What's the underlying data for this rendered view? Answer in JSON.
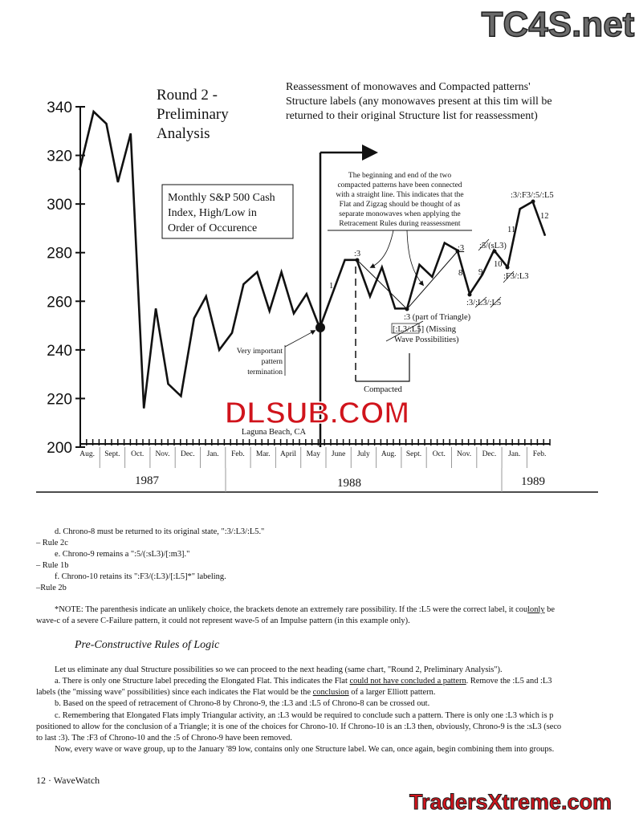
{
  "watermarks": {
    "top": "TC4S.net",
    "middle": "DLSUB.COM",
    "bottom": "TradersXtreme.com",
    "red": "#d0141c",
    "gray": "#6b6b6b"
  },
  "chart_data": {
    "type": "line",
    "title": "Round 2 - Preliminary Analysis",
    "title_lines": [
      "Round 2 -",
      "Preliminary",
      "Analysis"
    ],
    "subtitle_lines": [
      "Reassessment of monowaves and Compacted patterns'",
      "Structure labels (any monowaves present at this tim will be",
      "returned to their original Structure list for reassessment)"
    ],
    "legend_box_lines": [
      "Monthly S&P 500 Cash",
      "Index, High/Low in",
      "Order of Occurence"
    ],
    "ylim": [
      200,
      340
    ],
    "yticks": [
      "340",
      "320",
      "300",
      "280",
      "260",
      "240",
      "220",
      "200"
    ],
    "months": [
      "Aug.",
      "Sept.",
      "Oct.",
      "Nov.",
      "Dec.",
      "Jan.",
      "Feb.",
      "Mar.",
      "April",
      "May",
      "June",
      "July",
      "Aug.",
      "Sept.",
      "Oct.",
      "Nov.",
      "Dec.",
      "Jan.",
      "Feb."
    ],
    "years": [
      "1987",
      "1988",
      "1989"
    ],
    "grid": false,
    "points": [
      [
        "1987-08-07",
        314
      ],
      [
        "1987-08-24",
        338
      ],
      [
        "1987-09-09",
        333
      ],
      [
        "1987-09-23",
        309
      ],
      [
        "1987-10-08",
        329
      ],
      [
        "1987-10-24",
        216
      ],
      [
        "1987-11-08",
        257
      ],
      [
        "1987-11-23",
        226
      ],
      [
        "1987-12-08",
        221
      ],
      [
        "1987-12-24",
        253
      ],
      [
        "1988-01-08",
        262
      ],
      [
        "1988-01-24",
        240
      ],
      [
        "1988-02-09",
        247
      ],
      [
        "1988-02-23",
        267
      ],
      [
        "1988-03-09",
        272
      ],
      [
        "1988-03-24",
        256
      ],
      [
        "1988-04-08",
        272
      ],
      [
        "1988-04-23",
        255
      ],
      [
        "1988-05-08",
        263
      ],
      [
        "1988-05-24",
        249
      ],
      [
        "1988-06-24",
        277
      ],
      [
        "1988-07-08",
        277
      ],
      [
        "1988-07-24",
        262
      ],
      [
        "1988-08-08",
        274
      ],
      [
        "1988-08-24",
        257
      ],
      [
        "1988-09-08",
        257
      ],
      [
        "1988-09-23",
        275
      ],
      [
        "1988-10-08",
        270
      ],
      [
        "1988-10-23",
        284
      ],
      [
        "1988-11-08",
        281
      ],
      [
        "1988-11-23",
        263
      ],
      [
        "1988-12-08",
        271
      ],
      [
        "1988-12-22",
        281
      ],
      [
        "1989-01-08",
        274
      ],
      [
        "1989-01-23",
        298
      ],
      [
        "1989-02-08",
        301
      ],
      [
        "1989-02-23",
        287
      ]
    ],
    "annotations": {
      "box_lines": [
        "The beginning and end of the two",
        "compacted patterns have been connected",
        "with a straight line.  This indicates that the",
        "Flat and Zigzag should be thought of as",
        "separate monowaves when applying the",
        "Retracement Rules during reassessment"
      ],
      "termination_lines": [
        "Very important",
        "pattern",
        "termination"
      ],
      "w1": "1",
      "l3a": ":3",
      "l3b": ":3",
      "w8": "8",
      "w9": "9",
      "w10": "10",
      "w11": "11",
      "w12": "12",
      "sl3": ":5/(sL3)",
      "f3l3": ":F3/:L3",
      "top": ":3/:F3/:5/:L5",
      "low8": ":3/:L3/:L5",
      "triangle": ":3 (part of Triangle)",
      "missing1": "[:L3/:L5]  (Missing",
      "missing2": "Wave Possibilities)",
      "compacted": "Compacted",
      "location": "Laguna Beach, CA"
    }
  },
  "body": {
    "lines": [
      "d.  Chrono-8 must be returned to its original state, \":3/:L3/:L5.\"",
      "– Rule 2c",
      "e.  Chrono-9 remains a \":5/(:sL3)/[:m3].\"",
      "– Rule 1b",
      "f.  Chrono-10 retains its \":F3/(:L3)/[:L5]*\" labeling.",
      "–Rule 2b"
    ],
    "note1": "*NOTE:  The parenthesis indicate an unlikely choice, the brackets denote an extremely rare possibility.  If the :L5 were the correct label, it cou",
    "note1u": "lonly",
    "note1b": " be",
    "note2": "wave-c of a severe C-Failure pattern, it could not represent wave-5 of an Impulse pattern (in this example only).",
    "heading": "Pre-Constructive Rules of Logic",
    "p1": "Let us eliminate any dual Structure possibilities so we can proceed to the next heading (same chart, \"Round 2, Preliminary Analysis\").",
    "p2a": "a.  There is only one Structure label preceding the Elongated Flat.  This indicates the Flat ",
    "p2u": "could not have concluded a pattern",
    "p2b": ".  Remove the :L5 and :L3",
    "p3a": "labels (the \"missing wave\" possibilities) since each indicates the Flat would be the ",
    "p3u": "conclusion",
    "p3b": " of a larger Elliott pattern.",
    "p4": "b.  Based on the speed of retracement of Chrono-8 by Chrono-9, the :L3 and :L5 of Chrono-8 can be crossed out.",
    "p5": "c.  Remembering that Elongated Flats imply Triangular activity, an :L3 would be required to conclude such a pattern.  There is only one :L3 which is p",
    "p6": "positioned to allow for the conclusion of a Triangle; it is one of the choices for Chrono-10.  If Chrono-10 is an :L3 then, obviously, Chrono-9 is the :sL3 (seco",
    "p7": "to last :3).  The :F3 of Chrono-10 and the :5 of Chrono-9 have been removed.",
    "p8": "Now, every wave or wave group, up to the January '89 low, contains only one Structure label.  We can, once again, begin combining them into groups.",
    "footer": "12 · WaveWatch"
  }
}
